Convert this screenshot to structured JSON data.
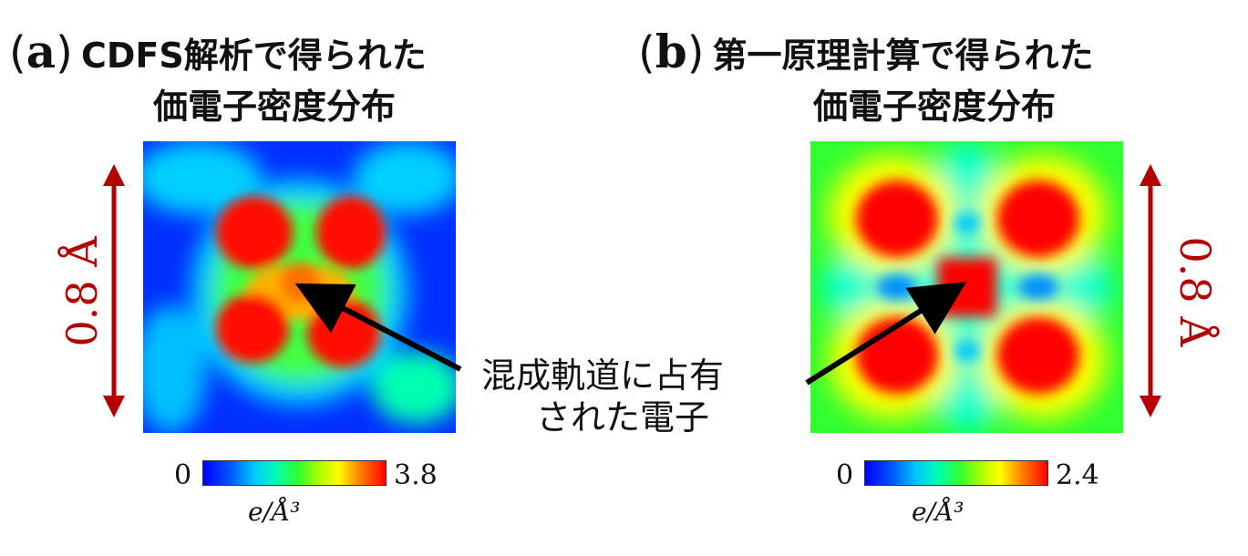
{
  "panel_a": {
    "letter": "a",
    "title_line1": "CDFS解析で得られた",
    "title_line2": "価電子密度分布",
    "colorbar_min": "0",
    "colorbar_max": "3.8",
    "unit": "e/Å³",
    "scale_label": "0.8 Å"
  },
  "panel_b": {
    "letter": "b",
    "title_line1": "第一原理計算で得られた",
    "title_line2": "価電子密度分布",
    "colorbar_min": "0",
    "colorbar_max": "2.4",
    "unit": "e/Å³",
    "scale_label": "0.8 Å"
  },
  "annotation": {
    "line1": "混成軌道に占有",
    "line2": "された電子"
  },
  "colors": {
    "scale_bar": "#b30000",
    "arrow": "#000000"
  }
}
